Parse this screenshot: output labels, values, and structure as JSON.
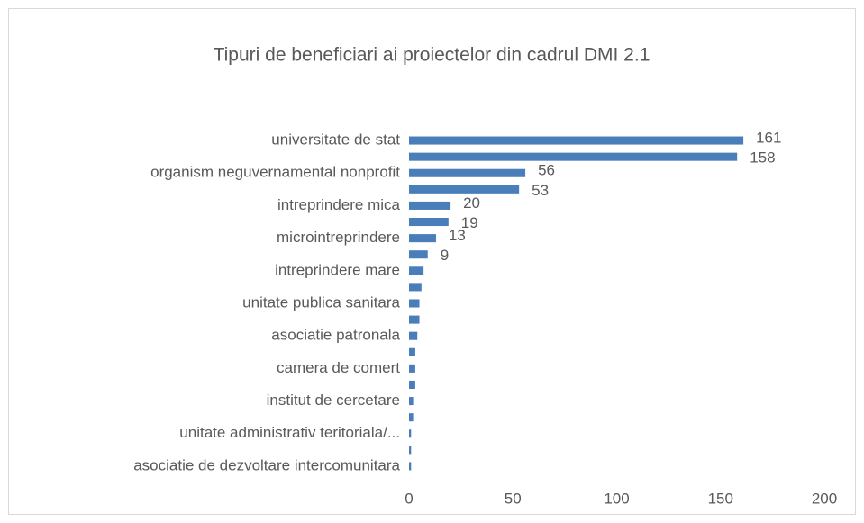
{
  "chart_data": {
    "type": "bar",
    "orientation": "horizontal",
    "title": "Tipuri de beneficiari ai proiectelor din cadrul DMI 2.1",
    "categories": [
      "universitate de stat",
      null,
      "organism neguvernamental nonprofit",
      null,
      "intreprindere mica",
      null,
      "microintreprindere",
      null,
      "intreprindere mare",
      null,
      "unitate publica sanitara",
      null,
      "asociatie patronala",
      null,
      "camera de comert",
      null,
      "institut de cercetare",
      null,
      "unitate administrativ teritoriala/...",
      null,
      "asociatie de dezvoltare intercomunitara"
    ],
    "values": [
      161,
      158,
      56,
      53,
      20,
      19,
      13,
      9,
      7,
      6,
      5,
      5,
      4,
      3,
      3,
      3,
      2,
      2,
      1,
      1,
      1
    ],
    "value_labels": [
      "161",
      "158",
      "56",
      "53",
      "20",
      "19",
      "13",
      "9",
      null,
      null,
      null,
      null,
      null,
      null,
      null,
      null,
      null,
      null,
      null,
      null,
      null
    ],
    "color": "#4a7ebb",
    "xlim": [
      0,
      200
    ],
    "xticks": [
      0,
      50,
      100,
      150,
      200
    ],
    "grid": false
  }
}
